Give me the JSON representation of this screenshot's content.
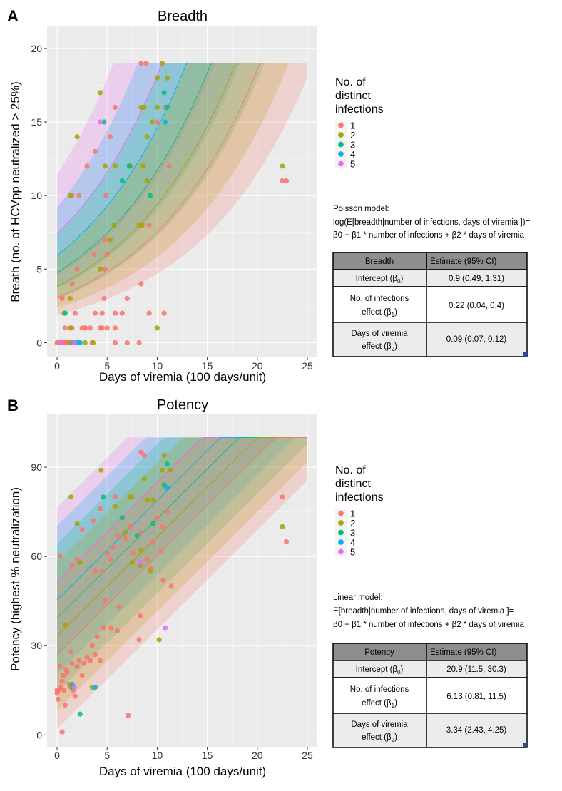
{
  "figure": {
    "panels": [
      {
        "label": "A",
        "title": "Breadth",
        "xlabel": "Days of viremia (100 days/unit)",
        "ylabel": "Breath (no. of HCVpp neutralized > 25%)",
        "legend_title": [
          "No. of",
          "distinct",
          "infections"
        ],
        "model_lines": [
          "Poisson model:",
          "log(E[breadth|number of infections, days of viremia ])=",
          "β0 + β1 * number of infections + β2 * days of viremia"
        ],
        "table": {
          "headers": [
            "Breadth",
            "Estimate (95% CI)"
          ],
          "rows": [
            {
              "term": [
                "Intercept (β",
                "0",
                ")"
              ],
              "estimate": "0.9 (0.49, 1.31)"
            },
            {
              "term": [
                "No. of infections",
                "effect (β",
                "1",
                ")"
              ],
              "estimate": "0.22 (0.04, 0.4)"
            },
            {
              "term": [
                "Days of viremia",
                "effect (β",
                "2",
                ")"
              ],
              "estimate": "0.09 (0.07, 0.12)"
            }
          ]
        }
      },
      {
        "label": "B",
        "title": "Potency",
        "xlabel": "Days of viremia (100 days/unit)",
        "ylabel": "Potency (highest % neutralization)",
        "legend_title": [
          "No. of",
          "distinct",
          "infections"
        ],
        "model_lines": [
          "Linear model:",
          "E[breadth|number of infections, days of viremia ]=",
          "β0 + β1 * number of infections  + β2 * days of viremia"
        ],
        "table": {
          "headers": [
            "Potency",
            "Estimate (95% CI)"
          ],
          "rows": [
            {
              "term": [
                "Intercept (β",
                "0",
                ")"
              ],
              "estimate": "20.9 (11.5, 30.3)"
            },
            {
              "term": [
                "No. of infections",
                "effect (β",
                "1",
                ")"
              ],
              "estimate": "6.13 (0.81, 11.5)"
            },
            {
              "term": [
                "Days of viremia",
                "effect (β",
                "2",
                ")"
              ],
              "estimate": "3.34 (2.43, 4.25)"
            }
          ]
        }
      }
    ]
  },
  "chart_data": [
    {
      "type": "scatter",
      "title": "Breadth",
      "xlabel": "Days of viremia (100 days/unit)",
      "ylabel": "Breath (no. of HCVpp neutralized > 25%)",
      "xlim": [
        -1,
        26
      ],
      "ylim": [
        -1,
        21.5
      ],
      "xticks": [
        0,
        5,
        10,
        15,
        20,
        25
      ],
      "yticks": [
        0,
        5,
        10,
        15,
        20
      ],
      "grid": true,
      "legend": {
        "title": "No. of distinct infections",
        "entries": [
          "1",
          "2",
          "3",
          "4",
          "5"
        ],
        "colors": [
          "#F8766D",
          "#A3A500",
          "#00BF7D",
          "#00B0F6",
          "#E76BF3"
        ]
      },
      "model": {
        "kind": "poisson",
        "b0": 0.9,
        "b1": 0.22,
        "b2": 0.09,
        "cap": 19,
        "band_lo": 0.62,
        "band_hi": 1.55
      },
      "series": [
        {
          "name": "1",
          "points": [
            [
              0,
              0
            ],
            [
              0.2,
              0
            ],
            [
              0.4,
              0
            ],
            [
              0.5,
              0
            ],
            [
              0.7,
              0
            ],
            [
              0.8,
              0
            ],
            [
              1,
              0
            ],
            [
              1.1,
              0
            ],
            [
              1.3,
              0
            ],
            [
              1.7,
              0
            ],
            [
              2.2,
              0
            ],
            [
              3.5,
              0
            ],
            [
              5.8,
              0
            ],
            [
              7,
              0
            ],
            [
              8.2,
              0
            ],
            [
              0.8,
              1
            ],
            [
              1.5,
              1
            ],
            [
              2.5,
              1
            ],
            [
              2.8,
              1
            ],
            [
              3.3,
              1
            ],
            [
              4.3,
              1
            ],
            [
              4.5,
              1
            ],
            [
              5,
              1
            ],
            [
              5.8,
              1
            ],
            [
              2.8,
              1
            ],
            [
              1.8,
              2
            ],
            [
              3.8,
              2
            ],
            [
              4.5,
              2
            ],
            [
              5.8,
              2
            ],
            [
              6.5,
              2
            ],
            [
              9.2,
              2
            ],
            [
              10.7,
              2
            ],
            [
              0.5,
              3
            ],
            [
              4.7,
              3
            ],
            [
              7,
              3
            ],
            [
              1.5,
              4
            ],
            [
              8.4,
              4
            ],
            [
              2,
              5
            ],
            [
              4.8,
              5
            ],
            [
              3.7,
              6
            ],
            [
              5,
              6
            ],
            [
              4.8,
              7
            ],
            [
              9.2,
              8
            ],
            [
              1.5,
              10
            ],
            [
              2.2,
              10
            ],
            [
              4.9,
              10
            ],
            [
              3,
              12
            ],
            [
              7.3,
              12
            ],
            [
              11.2,
              12
            ],
            [
              3.8,
              13
            ],
            [
              5.3,
              14
            ],
            [
              5.8,
              16
            ],
            [
              10,
              15
            ],
            [
              10.8,
              16
            ],
            [
              8.4,
              19
            ],
            [
              8.9,
              19
            ],
            [
              22.5,
              11
            ],
            [
              22.9,
              11
            ]
          ]
        },
        {
          "name": "2",
          "points": [
            [
              1.3,
              0
            ],
            [
              2.8,
              0
            ],
            [
              3.6,
              0
            ],
            [
              10,
              1
            ],
            [
              1.3,
              1
            ],
            [
              0.7,
              2
            ],
            [
              1.3,
              3
            ],
            [
              4.3,
              5
            ],
            [
              1.3,
              10
            ],
            [
              5.7,
              8
            ],
            [
              5.3,
              7
            ],
            [
              8.5,
              8
            ],
            [
              8.2,
              8
            ],
            [
              2,
              14
            ],
            [
              4.3,
              17
            ],
            [
              4.8,
              12
            ],
            [
              5.8,
              12
            ],
            [
              7.3,
              12
            ],
            [
              8.7,
              16
            ],
            [
              8.4,
              16
            ],
            [
              8.6,
              12
            ],
            [
              9,
              14
            ],
            [
              9,
              11
            ],
            [
              9.5,
              15
            ],
            [
              10,
              16
            ],
            [
              10,
              18
            ],
            [
              10.5,
              19
            ],
            [
              11,
              18
            ],
            [
              22.5,
              12
            ]
          ]
        },
        {
          "name": "3",
          "points": [
            [
              0.8,
              2
            ],
            [
              6.5,
              11
            ],
            [
              7.2,
              12
            ],
            [
              9.3,
              10
            ],
            [
              4.7,
              15
            ],
            [
              10.7,
              17
            ],
            [
              11,
              16
            ]
          ]
        },
        {
          "name": "4",
          "points": [
            [
              1.6,
              0
            ],
            [
              2,
              0
            ],
            [
              2.3,
              0
            ],
            [
              10.8,
              15
            ]
          ]
        },
        {
          "name": "5",
          "points": [
            [
              0.4,
              0
            ],
            [
              1.7,
              0
            ],
            [
              4.3,
              15
            ]
          ]
        }
      ]
    },
    {
      "type": "scatter",
      "title": "Potency",
      "xlabel": "Days of viremia (100 days/unit)",
      "ylabel": "Potency (highest % neutralization)",
      "xlim": [
        -1,
        26
      ],
      "ylim": [
        -4,
        108
      ],
      "xticks": [
        0,
        5,
        10,
        15,
        20,
        25
      ],
      "yticks": [
        0,
        30,
        60,
        90
      ],
      "grid": true,
      "legend": {
        "title": "No. of distinct infections",
        "entries": [
          "1",
          "2",
          "3",
          "4",
          "5"
        ],
        "colors": [
          "#F8766D",
          "#A3A500",
          "#00BF7D",
          "#00B0F6",
          "#E76BF3"
        ]
      },
      "model": {
        "kind": "linear",
        "b0": 20.9,
        "b1": 6.13,
        "b2": 3.34,
        "floor": 0,
        "cap": 100,
        "band_halfwidth": 25
      },
      "series": [
        {
          "name": "1",
          "points": [
            [
              0,
              14
            ],
            [
              0.1,
              12
            ],
            [
              0.2,
              15
            ],
            [
              0.3,
              23
            ],
            [
              0.4,
              16
            ],
            [
              0.5,
              18
            ],
            [
              0.5,
              1
            ],
            [
              0.6,
              20
            ],
            [
              0.7,
              15
            ],
            [
              0.8,
              10
            ],
            [
              0.9,
              22
            ],
            [
              1,
              21
            ],
            [
              1.2,
              17
            ],
            [
              1.4,
              28
            ],
            [
              1.5,
              24
            ],
            [
              1.6,
              15
            ],
            [
              1.8,
              13
            ],
            [
              2,
              23
            ],
            [
              2.2,
              25
            ],
            [
              2.5,
              20
            ],
            [
              2.7,
              24
            ],
            [
              3,
              26
            ],
            [
              3.3,
              25
            ],
            [
              3.5,
              30
            ],
            [
              3.8,
              27
            ],
            [
              4,
              33
            ],
            [
              4.3,
              25
            ],
            [
              4.6,
              36
            ],
            [
              4.8,
              45
            ],
            [
              5,
              61
            ],
            [
              5.3,
              59
            ],
            [
              5.6,
              63
            ],
            [
              6,
              35
            ],
            [
              6.2,
              43
            ],
            [
              6.8,
              66
            ],
            [
              7.3,
              70
            ],
            [
              7.1,
              6.5
            ],
            [
              7.6,
              61
            ],
            [
              8.2,
              32
            ],
            [
              8.3,
              40
            ],
            [
              8.4,
              95
            ],
            [
              8.7,
              94
            ],
            [
              9,
              59
            ],
            [
              9.6,
              65
            ],
            [
              10,
              73
            ],
            [
              10.4,
              62
            ],
            [
              10.6,
              52
            ],
            [
              11,
              75
            ],
            [
              11.4,
              50
            ],
            [
              0.3,
              60
            ],
            [
              1.5,
              57
            ],
            [
              2,
              59
            ],
            [
              2.5,
              69
            ],
            [
              3.8,
              55
            ],
            [
              3.6,
              72
            ],
            [
              4.3,
              76
            ],
            [
              4.5,
              55
            ],
            [
              5.4,
              36
            ],
            [
              5.8,
              80
            ],
            [
              6,
              67
            ],
            [
              7.5,
              80
            ],
            [
              8.3,
              68
            ],
            [
              9.4,
              56
            ],
            [
              10.5,
              70
            ],
            [
              22.5,
              80
            ],
            [
              22.9,
              65
            ],
            [
              0,
              15
            ]
          ]
        },
        {
          "name": "2",
          "points": [
            [
              1.4,
              80
            ],
            [
              2,
              71
            ],
            [
              2.3,
              58
            ],
            [
              3.5,
              16
            ],
            [
              4.4,
              89
            ],
            [
              5.8,
              77
            ],
            [
              6.8,
              68
            ],
            [
              7.3,
              80
            ],
            [
              7.5,
              58
            ],
            [
              8.3,
              57
            ],
            [
              8.4,
              62
            ],
            [
              8.7,
              86
            ],
            [
              9,
              79
            ],
            [
              9.3,
              55
            ],
            [
              9.6,
              79
            ],
            [
              10.2,
              32
            ],
            [
              10.5,
              89
            ],
            [
              10.7,
              94
            ],
            [
              11.3,
              89
            ],
            [
              22.5,
              70
            ],
            [
              0.8,
              37
            ],
            [
              1.4,
              16
            ]
          ]
        },
        {
          "name": "3",
          "points": [
            [
              1.5,
              17
            ],
            [
              2.3,
              7
            ],
            [
              4.6,
              80
            ],
            [
              6.5,
              73
            ],
            [
              8,
              67
            ],
            [
              9.6,
              71
            ],
            [
              10.7,
              84
            ],
            [
              11,
              91
            ]
          ]
        },
        {
          "name": "4",
          "points": [
            [
              1.6,
              16
            ],
            [
              3.8,
              16
            ],
            [
              11,
              83
            ]
          ]
        },
        {
          "name": "5",
          "points": [
            [
              1.7,
              16
            ],
            [
              8.3,
              58
            ],
            [
              10.8,
              36
            ]
          ]
        }
      ]
    }
  ]
}
